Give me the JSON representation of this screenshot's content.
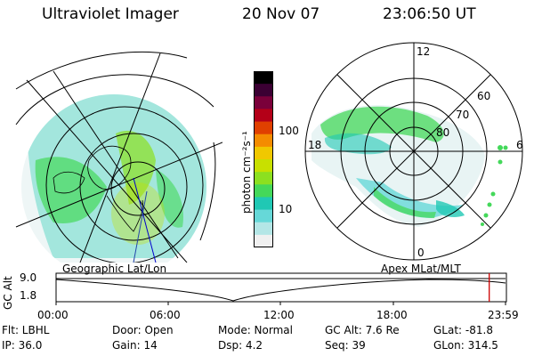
{
  "header": {
    "title": "Ultraviolet Imager",
    "date": "20 Nov 07",
    "time": "23:06:50 UT"
  },
  "colorbar": {
    "unit_label": "photon cm⁻²s⁻¹",
    "ticks": [
      "100",
      "10"
    ],
    "colors": [
      "#000000",
      "#3b0033",
      "#7a003a",
      "#b40018",
      "#e04000",
      "#f48c00",
      "#f0c800",
      "#c8e000",
      "#8ce020",
      "#44d85a",
      "#20c8b4",
      "#66d8d8",
      "#b4e6e6",
      "#f0f0f0"
    ]
  },
  "left_map": {
    "caption": "Geographic Lat/Lon"
  },
  "right_map": {
    "caption": "Apex MLat/MLT",
    "mlt_labels": {
      "top": "12",
      "left": "18",
      "right": "6",
      "bottom": "0"
    },
    "lat_labels": [
      "60",
      "70",
      "80"
    ]
  },
  "altitude_plot": {
    "ylabel": "GC Alt",
    "yticks": [
      "9.0",
      "1.8"
    ],
    "xticks": [
      "00:00",
      "06:00",
      "12:00",
      "18:00",
      "23:59"
    ],
    "current_time_color": "#cc0000"
  },
  "info": {
    "filter": "Flt: LBHL",
    "door": "Door: Open",
    "mode": "Mode: Normal",
    "gc_alt": "GC Alt: 7.6 Re",
    "glat": "GLat: -81.8",
    "ip": "IP: 36.0",
    "gain": "Gain: 14",
    "dsp": "Dsp:    4.2",
    "seq": "Seq: 39",
    "glon": "GLon: 314.5"
  }
}
